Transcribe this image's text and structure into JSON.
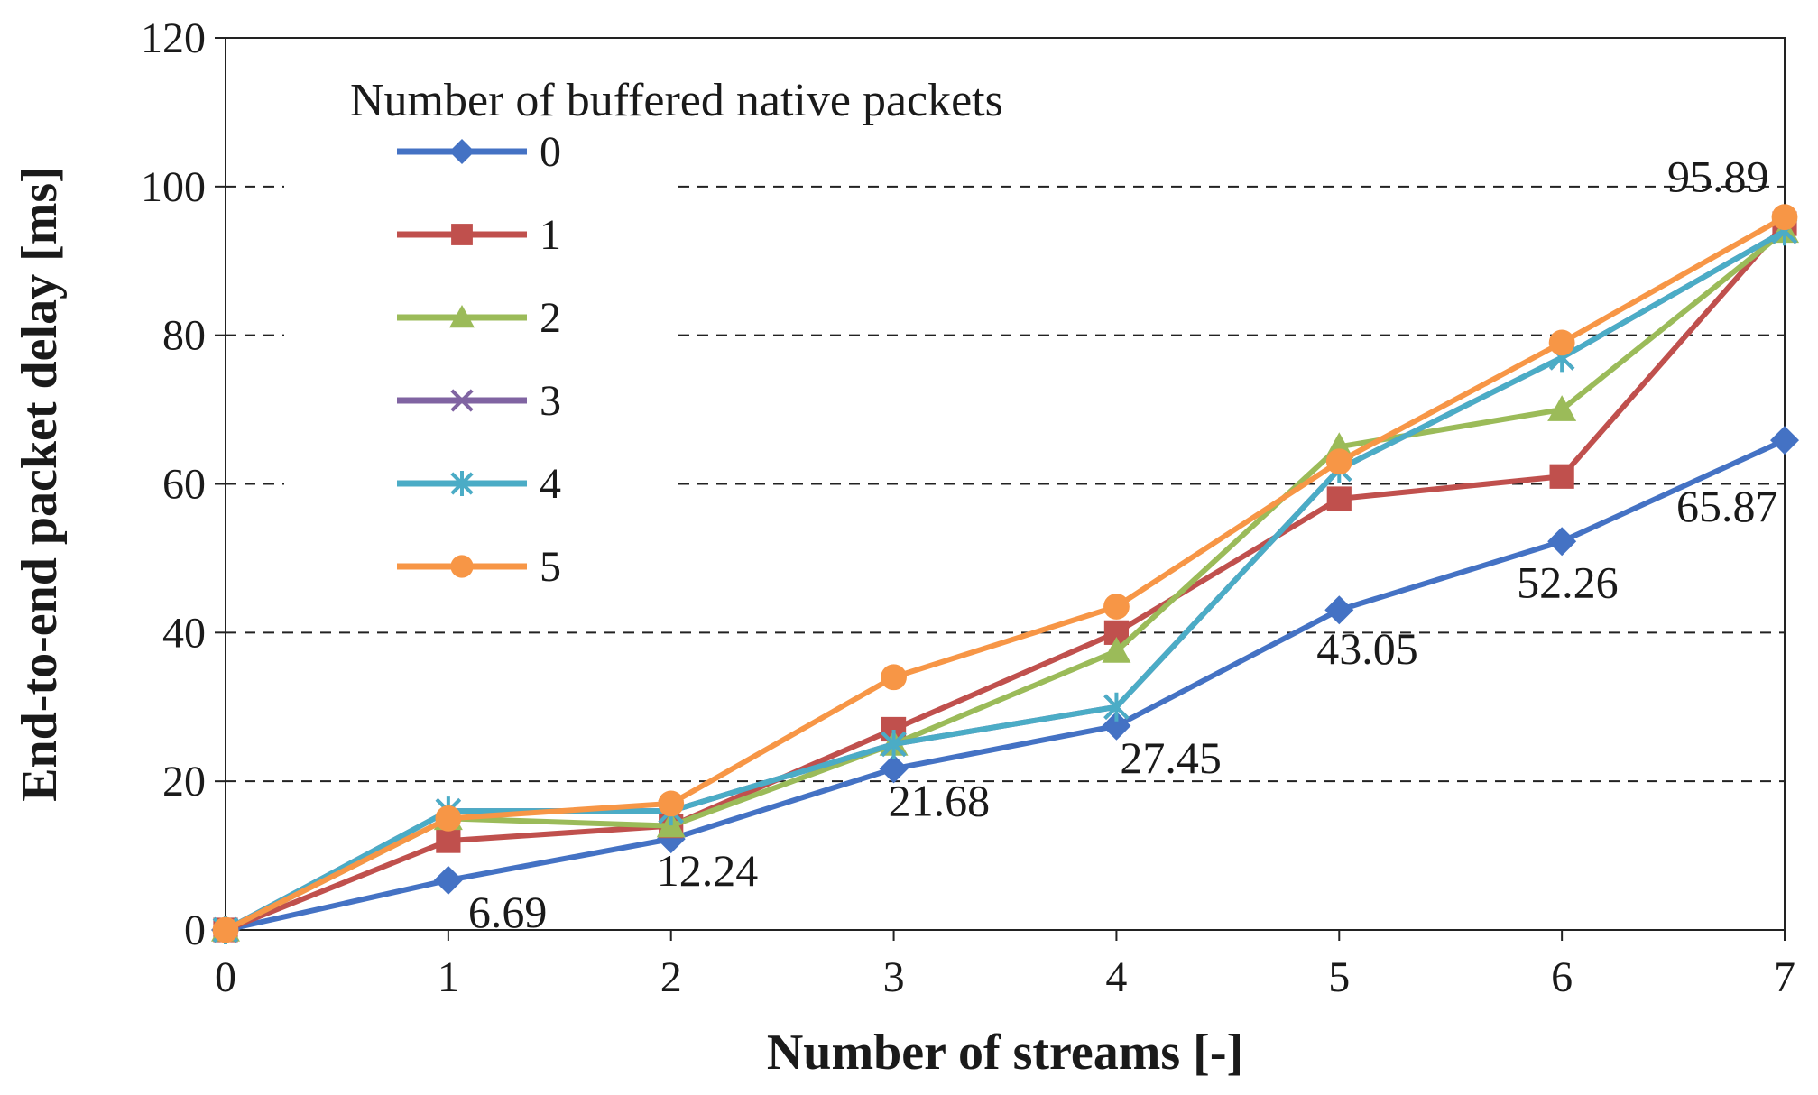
{
  "chart_data": {
    "type": "line",
    "title": "",
    "xlabel": "Number of streams [-]",
    "ylabel": "End-to-end packet delay [ms]",
    "x": [
      0,
      1,
      2,
      3,
      4,
      5,
      6,
      7
    ],
    "xlim": [
      0,
      7
    ],
    "ylim": [
      0,
      120
    ],
    "x_ticks": [
      "0",
      "1",
      "2",
      "3",
      "4",
      "5",
      "6",
      "7"
    ],
    "y_ticks": [
      "0",
      "20",
      "40",
      "60",
      "80",
      "100",
      "120"
    ],
    "grid": "horizontal dashed",
    "legend": {
      "title": "Number of buffered native packets",
      "placement": "top-left"
    },
    "series": [
      {
        "name": "0",
        "color": "#4472C4",
        "marker": "diamond",
        "values": [
          0,
          6.69,
          12.24,
          21.68,
          27.45,
          43.05,
          52.26,
          65.87
        ]
      },
      {
        "name": "1",
        "color": "#C0504D",
        "marker": "square",
        "values": [
          0,
          12.0,
          14.0,
          27.0,
          40.0,
          58.0,
          61.0,
          95.0
        ]
      },
      {
        "name": "2",
        "color": "#9BBB59",
        "marker": "triangle",
        "values": [
          0,
          15.0,
          14.0,
          25.0,
          37.5,
          65.0,
          70.0,
          94.0
        ]
      },
      {
        "name": "3",
        "color": "#8064A2",
        "marker": "x",
        "values": [
          0,
          16.0,
          16.0,
          25.0,
          30.0,
          62.0,
          77.0,
          94.0
        ]
      },
      {
        "name": "4",
        "color": "#4BACC6",
        "marker": "star",
        "values": [
          0,
          16.0,
          16.0,
          25.0,
          30.0,
          62.0,
          77.0,
          94.0
        ]
      },
      {
        "name": "5",
        "color": "#F79646",
        "marker": "circle",
        "values": [
          0,
          15.0,
          17.0,
          34.0,
          43.5,
          63.0,
          79.0,
          95.89
        ]
      }
    ],
    "annotations": [
      {
        "text": "6.69",
        "x": 1,
        "y": 6.69
      },
      {
        "text": "12.24",
        "x": 2,
        "y": 12.24
      },
      {
        "text": "21.68",
        "x": 3,
        "y": 21.68
      },
      {
        "text": "27.45",
        "x": 4,
        "y": 27.45
      },
      {
        "text": "43.05",
        "x": 5,
        "y": 43.05
      },
      {
        "text": "52.26",
        "x": 6,
        "y": 52.26
      },
      {
        "text": "65.87",
        "x": 7,
        "y": 65.87
      },
      {
        "text": "95.89",
        "x": 7,
        "y": 95.89
      }
    ]
  }
}
